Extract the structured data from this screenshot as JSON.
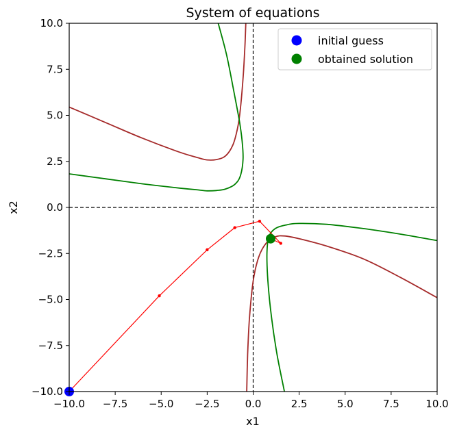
{
  "chart_data": {
    "type": "line",
    "title": "System of equations",
    "xlabel": "x1",
    "ylabel": "x2",
    "xlim": [
      -10,
      10
    ],
    "ylim": [
      -10,
      10
    ],
    "xticks": [
      "−10.0",
      "−7.5",
      "−5.0",
      "−2.5",
      "0.0",
      "2.5",
      "5.0",
      "7.5",
      "10.0"
    ],
    "yticks": [
      "−10.0",
      "−7.5",
      "−5.0",
      "−2.5",
      "0.0",
      "2.5",
      "5.0",
      "7.5",
      "10.0"
    ],
    "xtick_values": [
      -10,
      -7.5,
      -5,
      -2.5,
      0,
      2.5,
      5,
      7.5,
      10
    ],
    "ytick_values": [
      -10,
      -7.5,
      -5,
      -2.5,
      0,
      2.5,
      5,
      7.5,
      10
    ],
    "grid": false,
    "legend_position": "top-right",
    "legend": [
      {
        "label": "initial guess",
        "color": "#0000ff",
        "marker": "circle"
      },
      {
        "label": "obtained solution",
        "color": "#008000",
        "marker": "circle"
      }
    ],
    "reference_lines": [
      {
        "orientation": "vertical",
        "x": 0,
        "style": "dashed",
        "color": "#000000"
      },
      {
        "orientation": "horizontal",
        "y": 0,
        "style": "dashed",
        "color": "#000000"
      }
    ],
    "series": [
      {
        "curve": "brown-upper-left",
        "color": "#a52a2a",
        "points": [
          [
            -10,
            5.45
          ],
          [
            -8,
            4.6
          ],
          [
            -6,
            3.75
          ],
          [
            -4,
            3.0
          ],
          [
            -3,
            2.7
          ],
          [
            -2.5,
            2.58
          ],
          [
            -2,
            2.6
          ],
          [
            -1.5,
            2.8
          ],
          [
            -1.1,
            3.4
          ],
          [
            -0.85,
            4.3
          ],
          [
            -0.7,
            5.3
          ],
          [
            -0.55,
            7.0
          ],
          [
            -0.45,
            8.7
          ],
          [
            -0.4,
            10.0
          ]
        ]
      },
      {
        "curve": "brown-lower-right",
        "color": "#a52a2a",
        "points": [
          [
            -0.35,
            -10.0
          ],
          [
            -0.3,
            -8.0
          ],
          [
            -0.2,
            -6.0
          ],
          [
            0.0,
            -4.0
          ],
          [
            0.3,
            -2.7
          ],
          [
            0.7,
            -1.95
          ],
          [
            1.2,
            -1.6
          ],
          [
            1.7,
            -1.55
          ],
          [
            2.5,
            -1.7
          ],
          [
            4.0,
            -2.1
          ],
          [
            6.0,
            -2.8
          ],
          [
            8.0,
            -3.8
          ],
          [
            10.0,
            -4.9
          ]
        ]
      },
      {
        "curve": "green-upper-left",
        "color": "#008000",
        "points": [
          [
            -10,
            1.82
          ],
          [
            -8,
            1.55
          ],
          [
            -6,
            1.28
          ],
          [
            -4,
            1.05
          ],
          [
            -3,
            0.95
          ],
          [
            -2.5,
            0.9
          ],
          [
            -2,
            0.92
          ],
          [
            -1.5,
            1.0
          ],
          [
            -1.0,
            1.25
          ],
          [
            -0.7,
            1.7
          ],
          [
            -0.55,
            2.6
          ],
          [
            -0.6,
            3.6
          ],
          [
            -0.75,
            4.7
          ],
          [
            -1.05,
            6.3
          ],
          [
            -1.45,
            8.3
          ],
          [
            -1.9,
            10.0
          ]
        ]
      },
      {
        "curve": "green-lower-right",
        "color": "#008000",
        "points": [
          [
            1.7,
            -10.0
          ],
          [
            1.3,
            -8.0
          ],
          [
            1.0,
            -6.0
          ],
          [
            0.8,
            -4.0
          ],
          [
            0.75,
            -2.5
          ],
          [
            0.85,
            -1.6
          ],
          [
            1.2,
            -1.15
          ],
          [
            1.8,
            -0.95
          ],
          [
            2.5,
            -0.87
          ],
          [
            4.0,
            -0.92
          ],
          [
            6.0,
            -1.15
          ],
          [
            8.0,
            -1.45
          ],
          [
            10.0,
            -1.8
          ]
        ]
      },
      {
        "curve": "iteration-path",
        "color": "#ff0000",
        "points": [
          [
            -10,
            -10
          ],
          [
            -5.1,
            -4.8
          ],
          [
            -2.5,
            -2.3
          ],
          [
            -1.0,
            -1.1
          ],
          [
            0.35,
            -0.75
          ],
          [
            1.5,
            -1.95
          ],
          [
            0.95,
            -1.7
          ]
        ]
      }
    ],
    "initial_guess": [
      -10,
      -10
    ],
    "obtained_solution": [
      0.95,
      -1.7
    ]
  }
}
